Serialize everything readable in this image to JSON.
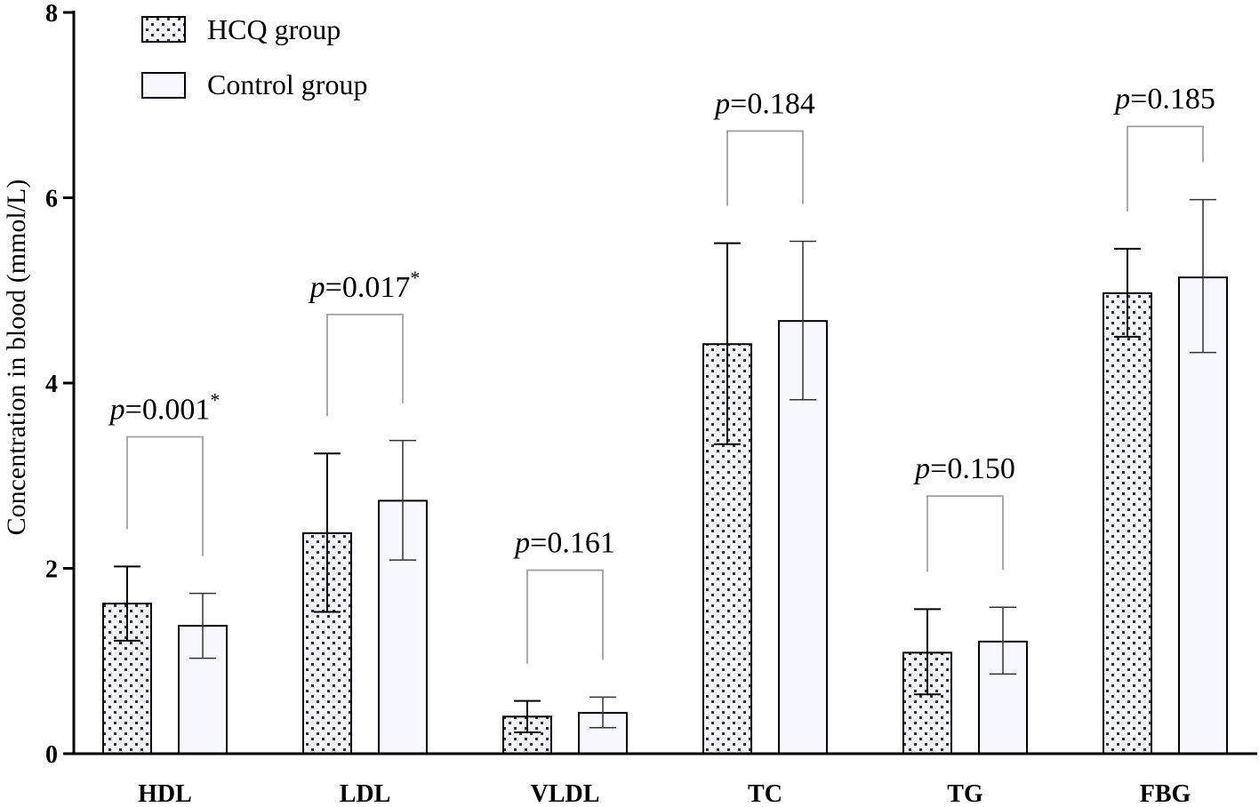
{
  "chart_data": {
    "type": "bar",
    "title": "",
    "xlabel": "",
    "ylabel": "Concentration in blood (mmol/L)",
    "ylim": [
      0,
      8
    ],
    "yticks": [
      0,
      2,
      4,
      6,
      8
    ],
    "categories": [
      "HDL",
      "LDL",
      "VLDL",
      "TC",
      "TG",
      "FBG"
    ],
    "series": [
      {
        "name": "HCQ group",
        "pattern": "dotted",
        "values": [
          1.62,
          2.38,
          0.4,
          4.42,
          1.09,
          4.97
        ],
        "error_low": [
          1.22,
          1.53,
          0.23,
          3.34,
          0.64,
          4.5
        ],
        "error_high": [
          2.02,
          3.24,
          0.57,
          5.51,
          1.56,
          5.45
        ]
      },
      {
        "name": "Control group",
        "pattern": "plain",
        "values": [
          1.38,
          2.73,
          0.44,
          4.67,
          1.21,
          5.14
        ],
        "error_low": [
          1.03,
          2.09,
          0.28,
          3.82,
          0.86,
          4.33
        ],
        "error_high": [
          1.73,
          3.38,
          0.61,
          5.53,
          1.58,
          5.98
        ]
      }
    ],
    "annotations": [
      {
        "category": "HDL",
        "prefix": "p",
        "text": "=0.001",
        "star": "*",
        "bracket_level": 3.42
      },
      {
        "category": "LDL",
        "prefix": "p",
        "text": "=0.017",
        "star": "*",
        "bracket_level": 4.74
      },
      {
        "category": "VLDL",
        "prefix": "p",
        "text": "=0.161",
        "star": "",
        "bracket_level": 1.98
      },
      {
        "category": "TC",
        "prefix": "p",
        "text": "=0.184",
        "star": "",
        "bracket_level": 6.72
      },
      {
        "category": "TG",
        "prefix": "p",
        "text": "=0.150",
        "star": "",
        "bracket_level": 2.78
      },
      {
        "category": "FBG",
        "prefix": "p",
        "text": "=0.185",
        "star": "",
        "bracket_level": 6.77
      }
    ],
    "legend_position": "top-left"
  }
}
